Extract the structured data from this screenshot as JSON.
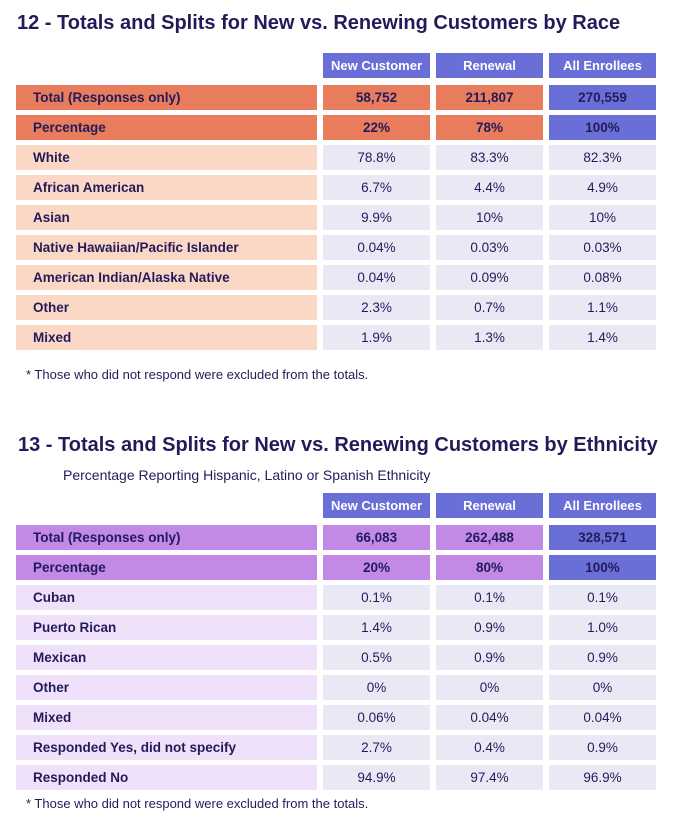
{
  "colors": {
    "header_bg": "#6a6fd8",
    "highlight_bg": "#6a6fd8",
    "value_bg": "#e9e9f5",
    "header_text": "#ffffff",
    "text": "#231b59"
  },
  "chart_data": [
    {
      "type": "table",
      "title": "12 - Totals and Splits for New vs. Renewing Customers by Race",
      "subtitle": "",
      "columns": [
        "New Customer",
        "Renewal",
        "All Enrollees"
      ],
      "theme": {
        "accent": "#e87c5c",
        "label_bg": "#fbd8c5"
      },
      "rows": [
        {
          "label": "Total (Responses only)",
          "type": "total",
          "values": [
            "58,752",
            "211,807",
            "270,559"
          ]
        },
        {
          "label": "Percentage",
          "type": "total",
          "values": [
            "22%",
            "78%",
            "100%"
          ]
        },
        {
          "label": "White",
          "type": "normal",
          "values": [
            "78.8%",
            "83.3%",
            "82.3%"
          ]
        },
        {
          "label": "African American",
          "type": "normal",
          "values": [
            "6.7%",
            "4.4%",
            "4.9%"
          ]
        },
        {
          "label": "Asian",
          "type": "normal",
          "values": [
            "9.9%",
            "10%",
            "10%"
          ]
        },
        {
          "label": "Native Hawaiian/Pacific Islander",
          "type": "normal",
          "values": [
            "0.04%",
            "0.03%",
            "0.03%"
          ]
        },
        {
          "label": "American Indian/Alaska Native",
          "type": "normal",
          "values": [
            "0.04%",
            "0.09%",
            "0.08%"
          ]
        },
        {
          "label": "Other",
          "type": "normal",
          "values": [
            "2.3%",
            "0.7%",
            "1.1%"
          ]
        },
        {
          "label": "Mixed",
          "type": "normal",
          "values": [
            "1.9%",
            "1.3%",
            "1.4%"
          ]
        }
      ],
      "footnote": "* Those who did not respond were excluded from the totals."
    },
    {
      "type": "table",
      "title": "13 - Totals and Splits for New vs. Renewing Customers by Ethnicity",
      "subtitle": "Percentage Reporting Hispanic, Latino or Spanish Ethnicity",
      "columns": [
        "New Customer",
        "Renewal",
        "All Enrollees"
      ],
      "theme": {
        "accent": "#c289e6",
        "label_bg": "#f0e1fa"
      },
      "rows": [
        {
          "label": "Total (Responses only)",
          "type": "total",
          "values": [
            "66,083",
            "262,488",
            "328,571"
          ]
        },
        {
          "label": "Percentage",
          "type": "total",
          "values": [
            "20%",
            "80%",
            "100%"
          ]
        },
        {
          "label": "Cuban",
          "type": "normal",
          "values": [
            "0.1%",
            "0.1%",
            "0.1%"
          ]
        },
        {
          "label": "Puerto Rican",
          "type": "normal",
          "values": [
            "1.4%",
            "0.9%",
            "1.0%"
          ]
        },
        {
          "label": "Mexican",
          "type": "normal",
          "values": [
            "0.5%",
            "0.9%",
            "0.9%"
          ]
        },
        {
          "label": "Other",
          "type": "normal",
          "values": [
            "0%",
            "0%",
            "0%"
          ]
        },
        {
          "label": "Mixed",
          "type": "normal",
          "values": [
            "0.06%",
            "0.04%",
            "0.04%"
          ]
        },
        {
          "label": "Responded Yes, did not specify",
          "type": "normal",
          "values": [
            "2.7%",
            "0.4%",
            "0.9%"
          ]
        },
        {
          "label": "Responded No",
          "type": "normal",
          "values": [
            "94.9%",
            "97.4%",
            "96.9%"
          ]
        }
      ],
      "footnote": "* Those who did not respond were excluded from the totals."
    }
  ]
}
